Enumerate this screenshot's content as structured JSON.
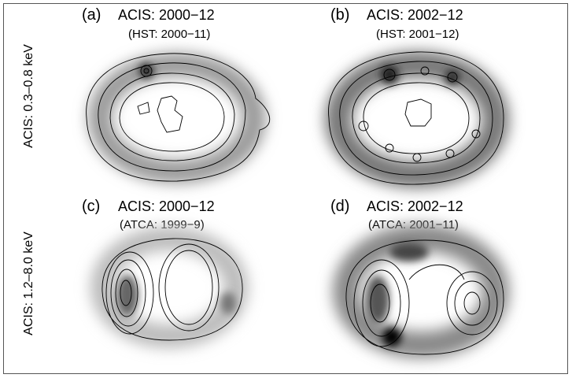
{
  "row_labels": [
    "ACIS: 0.3–0.8 keV",
    "ACIS: 1.2–8.0 keV"
  ],
  "panels": [
    {
      "label": "(a)",
      "title": "ACIS: 2000−12",
      "subtitle": "(HST: 2000−11)"
    },
    {
      "label": "(b)",
      "title": "ACIS: 2002−12",
      "subtitle": "(HST: 2001−12)"
    },
    {
      "label": "(c)",
      "title": "ACIS: 2000−12",
      "subtitle": "(ATCA: 1999−9)"
    },
    {
      "label": "(d)",
      "title": "ACIS: 2002−12",
      "subtitle": "(ATCA: 2001−11)"
    }
  ]
}
